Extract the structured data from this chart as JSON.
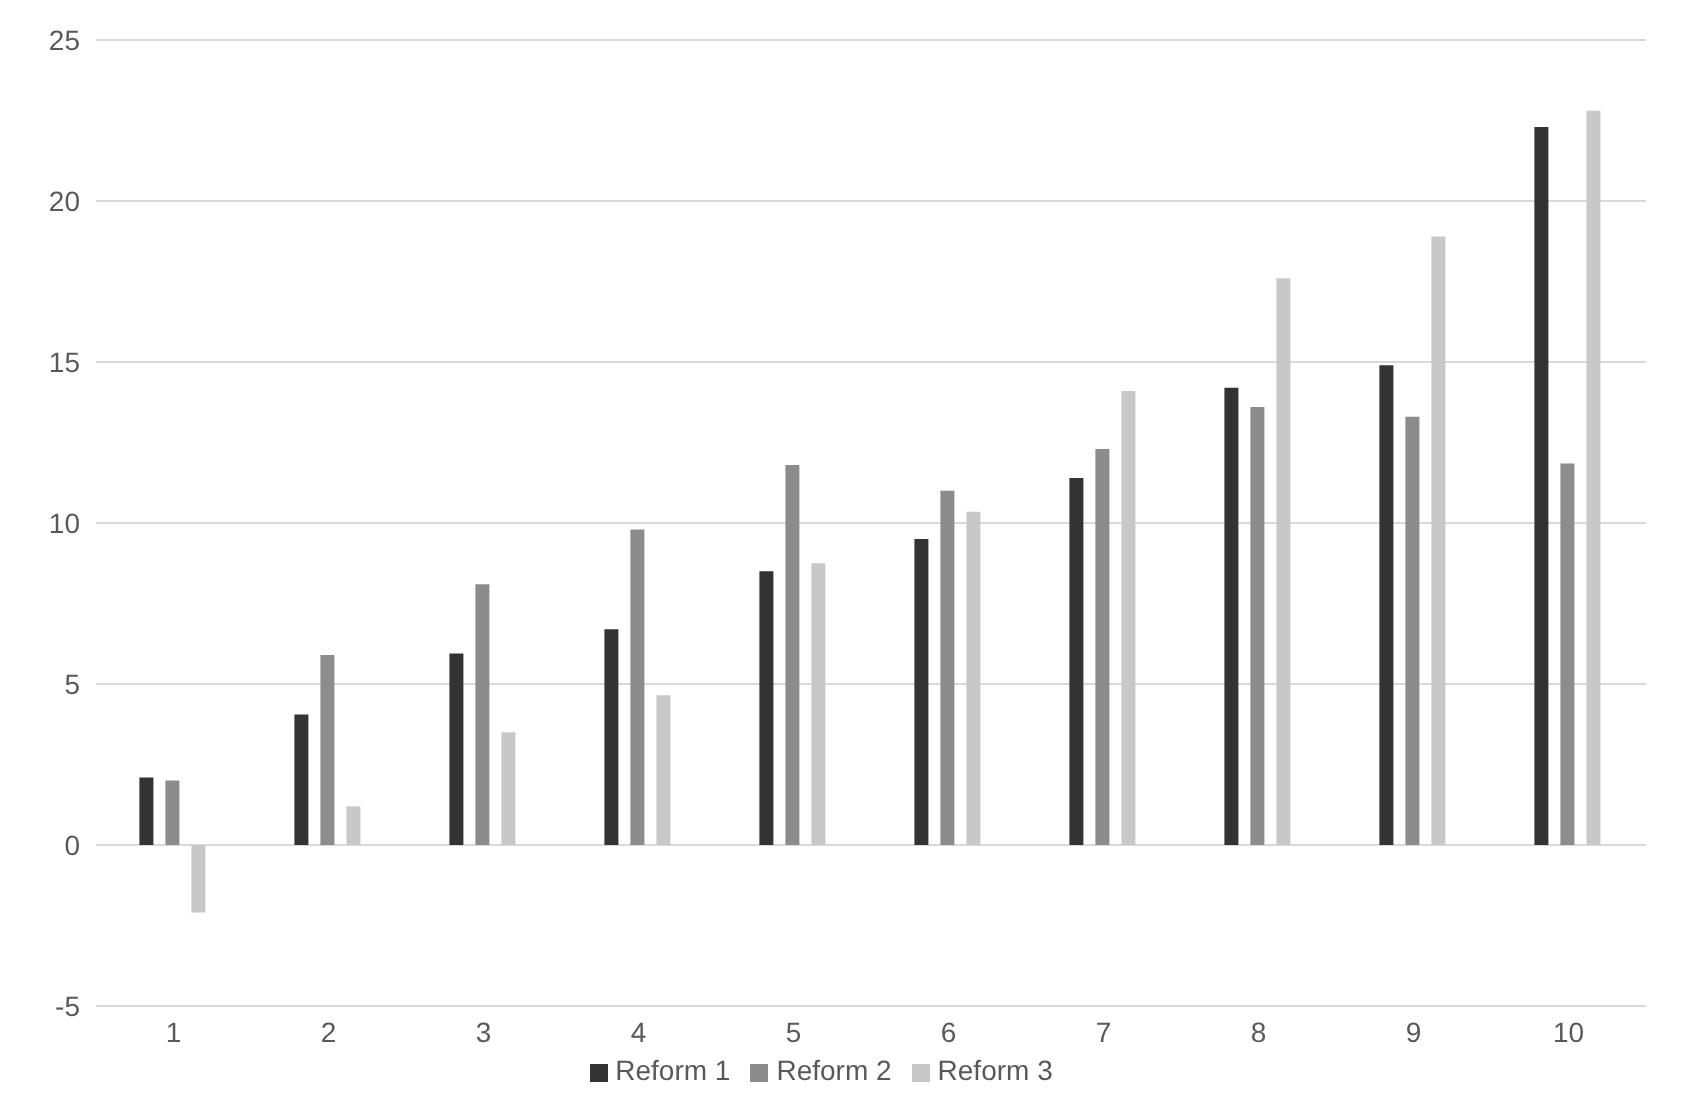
{
  "chart_data": {
    "type": "bar",
    "categories": [
      "1",
      "2",
      "3",
      "4",
      "5",
      "6",
      "7",
      "8",
      "9",
      "10"
    ],
    "series": [
      {
        "name": "Reform 1",
        "color": "#333333",
        "values": [
          2.1,
          4.05,
          5.95,
          6.7,
          8.5,
          9.5,
          11.4,
          14.2,
          14.9,
          22.3
        ]
      },
      {
        "name": "Reform 2",
        "color": "#8c8c8c",
        "values": [
          2.0,
          5.9,
          8.1,
          9.8,
          11.8,
          11.0,
          12.3,
          13.6,
          13.3,
          11.85
        ]
      },
      {
        "name": "Reform 3",
        "color": "#c8c8c8",
        "values": [
          -2.1,
          1.2,
          3.5,
          4.65,
          8.75,
          10.35,
          14.1,
          17.6,
          18.9,
          22.8
        ]
      }
    ],
    "ylim": [
      -5,
      25
    ],
    "yticks": [
      -5,
      0,
      5,
      10,
      15,
      20,
      25
    ],
    "grid": "y",
    "legend": "bottom"
  }
}
